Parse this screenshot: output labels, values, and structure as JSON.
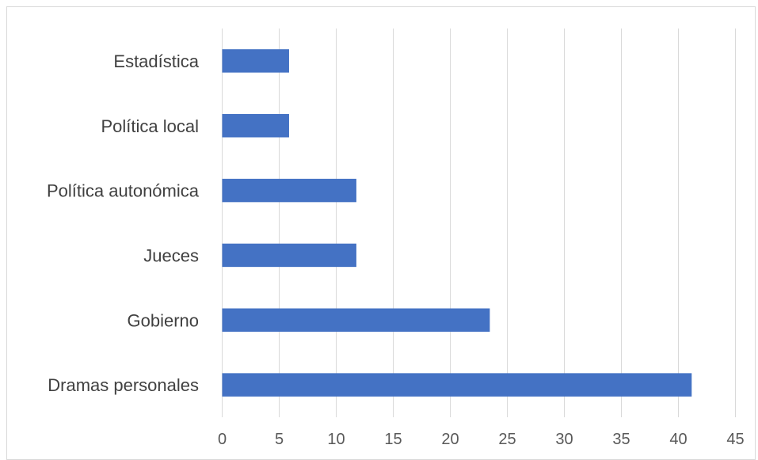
{
  "chart_data": {
    "type": "bar",
    "orientation": "horizontal",
    "categories": [
      "Dramas personales",
      "Gobierno",
      "Jueces",
      "Política autonómica",
      "Política local",
      "Estadística"
    ],
    "values": [
      41.2,
      23.5,
      11.8,
      11.8,
      5.9,
      5.9
    ],
    "xlim": [
      0,
      45
    ],
    "xticks": [
      "0",
      "5",
      "10",
      "15",
      "20",
      "25",
      "30",
      "35",
      "40",
      "45"
    ],
    "title": "",
    "xlabel": "",
    "ylabel": "",
    "grid": "vertical gridlines on",
    "legend": "none",
    "colors": {
      "bar": "#4472c4",
      "grid": "#d9d9d9",
      "tick_text": "#595959",
      "category_text": "#404040"
    }
  }
}
